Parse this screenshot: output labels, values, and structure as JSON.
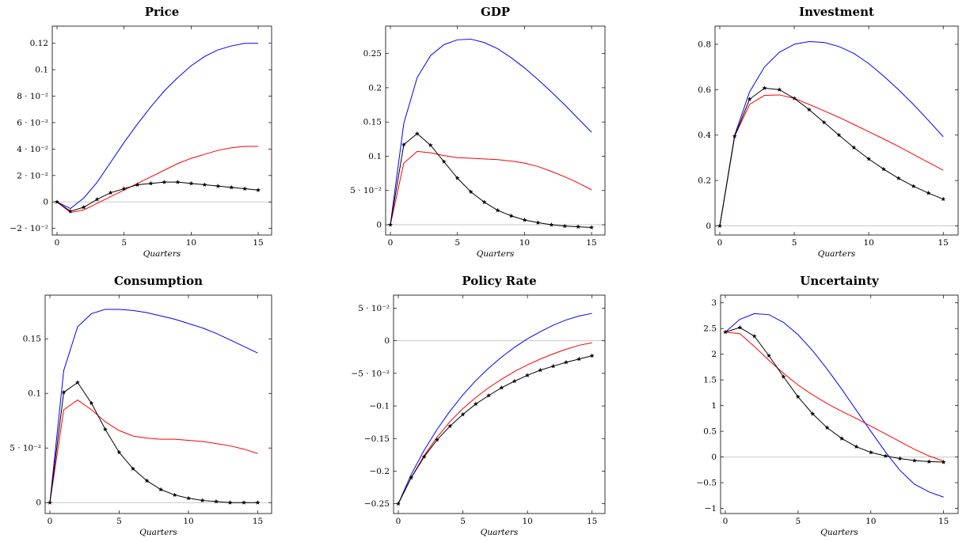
{
  "chart_data": [
    {
      "type": "line",
      "title": "Price",
      "xlabel": "Quarters",
      "ylabel": "",
      "xlim": [
        0,
        16
      ],
      "ylim": [
        -0.025,
        0.133
      ],
      "x_ticks": [
        0,
        5,
        10,
        15
      ],
      "y_ticks": [
        {
          "value": -0.02,
          "label": "−2 · 10⁻²"
        },
        {
          "value": 0,
          "label": "0"
        },
        {
          "value": 0.02,
          "label": "2 · 10⁻²"
        },
        {
          "value": 0.04,
          "label": "4 · 10⁻²"
        },
        {
          "value": 0.06,
          "label": "6 · 10⁻²"
        },
        {
          "value": 0.08,
          "label": "8 · 10⁻²"
        },
        {
          "value": 0.1,
          "label": "0.1"
        },
        {
          "value": 0.12,
          "label": "0.12"
        }
      ],
      "zero_line": true,
      "series": [
        {
          "color": "#0000ff",
          "marker": "none",
          "x": [
            0,
            1,
            2,
            3,
            4,
            5,
            6,
            7,
            8,
            9,
            10,
            11,
            12,
            13,
            14,
            15
          ],
          "y": [
            0,
            -0.005,
            0.003,
            0.015,
            0.03,
            0.045,
            0.059,
            0.072,
            0.084,
            0.094,
            0.103,
            0.11,
            0.115,
            0.118,
            0.12,
            0.12
          ]
        },
        {
          "color": "#ff0000",
          "marker": "none",
          "x": [
            0,
            1,
            2,
            3,
            4,
            5,
            6,
            7,
            8,
            9,
            10,
            11,
            12,
            13,
            14,
            15
          ],
          "y": [
            0,
            -0.008,
            -0.006,
            -0.001,
            0.004,
            0.009,
            0.014,
            0.019,
            0.024,
            0.029,
            0.033,
            0.036,
            0.039,
            0.041,
            0.042,
            0.042
          ]
        },
        {
          "color": "#000000",
          "marker": "star",
          "x": [
            0,
            1,
            2,
            3,
            4,
            5,
            6,
            7,
            8,
            9,
            10,
            11,
            12,
            13,
            14,
            15
          ],
          "y": [
            0,
            -0.007,
            -0.004,
            0.002,
            0.007,
            0.01,
            0.013,
            0.014,
            0.015,
            0.015,
            0.014,
            0.013,
            0.012,
            0.011,
            0.01,
            0.009
          ]
        }
      ]
    },
    {
      "type": "line",
      "title": "GDP",
      "xlabel": "Quarters",
      "ylabel": "",
      "xlim": [
        0,
        16
      ],
      "ylim": [
        -0.015,
        0.29
      ],
      "x_ticks": [
        0,
        5,
        10,
        15
      ],
      "y_ticks": [
        {
          "value": 0,
          "label": "0"
        },
        {
          "value": 0.05,
          "label": "5 · 10⁻²"
        },
        {
          "value": 0.1,
          "label": "0.1"
        },
        {
          "value": 0.15,
          "label": "0.15"
        },
        {
          "value": 0.2,
          "label": "0.2"
        },
        {
          "value": 0.25,
          "label": "0.25"
        }
      ],
      "zero_line": true,
      "series": [
        {
          "color": "#0000ff",
          "marker": "none",
          "x": [
            0,
            1,
            2,
            3,
            4,
            5,
            6,
            7,
            8,
            9,
            10,
            11,
            12,
            13,
            14,
            15
          ],
          "y": [
            0,
            0.148,
            0.215,
            0.247,
            0.263,
            0.27,
            0.271,
            0.266,
            0.257,
            0.244,
            0.229,
            0.212,
            0.194,
            0.175,
            0.155,
            0.135
          ]
        },
        {
          "color": "#ff0000",
          "marker": "none",
          "x": [
            0,
            1,
            2,
            3,
            4,
            5,
            6,
            7,
            8,
            9,
            10,
            11,
            12,
            13,
            14,
            15
          ],
          "y": [
            0,
            0.09,
            0.107,
            0.105,
            0.101,
            0.098,
            0.097,
            0.096,
            0.095,
            0.093,
            0.09,
            0.085,
            0.078,
            0.07,
            0.061,
            0.051
          ]
        },
        {
          "color": "#000000",
          "marker": "star",
          "x": [
            0,
            1,
            2,
            3,
            4,
            5,
            6,
            7,
            8,
            9,
            10,
            11,
            12,
            13,
            14,
            15
          ],
          "y": [
            0,
            0.117,
            0.133,
            0.116,
            0.092,
            0.068,
            0.048,
            0.033,
            0.021,
            0.013,
            0.007,
            0.003,
            0.0,
            -0.002,
            -0.003,
            -0.004
          ]
        }
      ]
    },
    {
      "type": "line",
      "title": "Investment",
      "xlabel": "Quarters",
      "ylabel": "",
      "xlim": [
        0,
        16
      ],
      "ylim": [
        -0.04,
        0.88
      ],
      "x_ticks": [
        0,
        5,
        10,
        15
      ],
      "y_ticks": [
        {
          "value": 0,
          "label": "0"
        },
        {
          "value": 0.2,
          "label": "0.2"
        },
        {
          "value": 0.4,
          "label": "0.4"
        },
        {
          "value": 0.6,
          "label": "0.6"
        },
        {
          "value": 0.8,
          "label": "0.8"
        }
      ],
      "zero_line": true,
      "series": [
        {
          "color": "#0000ff",
          "marker": "none",
          "x": [
            0,
            1,
            2,
            3,
            4,
            5,
            6,
            7,
            8,
            9,
            10,
            11,
            12,
            13,
            14,
            15
          ],
          "y": [
            0,
            0.4,
            0.59,
            0.7,
            0.765,
            0.8,
            0.812,
            0.808,
            0.79,
            0.76,
            0.715,
            0.66,
            0.6,
            0.535,
            0.465,
            0.393
          ]
        },
        {
          "color": "#ff0000",
          "marker": "none",
          "x": [
            0,
            1,
            2,
            3,
            4,
            5,
            6,
            7,
            8,
            9,
            10,
            11,
            12,
            13,
            14,
            15
          ],
          "y": [
            0,
            0.395,
            0.535,
            0.575,
            0.577,
            0.562,
            0.535,
            0.507,
            0.478,
            0.447,
            0.415,
            0.383,
            0.35,
            0.315,
            0.28,
            0.245
          ]
        },
        {
          "color": "#000000",
          "marker": "star",
          "x": [
            0,
            1,
            2,
            3,
            4,
            5,
            6,
            7,
            8,
            9,
            10,
            11,
            12,
            13,
            14,
            15
          ],
          "y": [
            0,
            0.395,
            0.558,
            0.607,
            0.6,
            0.562,
            0.512,
            0.456,
            0.4,
            0.345,
            0.295,
            0.25,
            0.21,
            0.175,
            0.145,
            0.118
          ]
        }
      ]
    },
    {
      "type": "line",
      "title": "Consumption",
      "xlabel": "Quarters",
      "ylabel": "",
      "xlim": [
        0,
        16
      ],
      "ylim": [
        -0.01,
        0.19
      ],
      "x_ticks": [
        0,
        5,
        10,
        15
      ],
      "y_ticks": [
        {
          "value": 0,
          "label": "0"
        },
        {
          "value": 0.05,
          "label": "5 · 10⁻²"
        },
        {
          "value": 0.1,
          "label": "0.1"
        },
        {
          "value": 0.15,
          "label": "0.15"
        }
      ],
      "zero_line": true,
      "series": [
        {
          "color": "#0000ff",
          "marker": "none",
          "x": [
            0,
            1,
            2,
            3,
            4,
            5,
            6,
            7,
            8,
            9,
            10,
            11,
            12,
            13,
            14,
            15
          ],
          "y": [
            0,
            0.121,
            0.161,
            0.173,
            0.177,
            0.177,
            0.176,
            0.174,
            0.171,
            0.168,
            0.164,
            0.16,
            0.155,
            0.149,
            0.143,
            0.137
          ]
        },
        {
          "color": "#ff0000",
          "marker": "none",
          "x": [
            0,
            1,
            2,
            3,
            4,
            5,
            6,
            7,
            8,
            9,
            10,
            11,
            12,
            13,
            14,
            15
          ],
          "y": [
            0,
            0.085,
            0.094,
            0.085,
            0.074,
            0.066,
            0.061,
            0.059,
            0.058,
            0.058,
            0.057,
            0.056,
            0.054,
            0.052,
            0.049,
            0.045
          ]
        },
        {
          "color": "#000000",
          "marker": "star",
          "x": [
            0,
            1,
            2,
            3,
            4,
            5,
            6,
            7,
            8,
            9,
            10,
            11,
            12,
            13,
            14,
            15
          ],
          "y": [
            0,
            0.101,
            0.11,
            0.091,
            0.067,
            0.046,
            0.031,
            0.02,
            0.012,
            0.007,
            0.004,
            0.002,
            0.001,
            0.0,
            0.0,
            0.0
          ]
        }
      ]
    },
    {
      "type": "line",
      "title": "Policy Rate",
      "xlabel": "Quarters",
      "ylabel": "",
      "xlim": [
        0,
        16
      ],
      "ylim": [
        -0.265,
        0.07
      ],
      "x_ticks": [
        0,
        5,
        10,
        15
      ],
      "y_ticks": [
        {
          "value": -0.25,
          "label": "−0.25"
        },
        {
          "value": -0.2,
          "label": "−0.2"
        },
        {
          "value": -0.15,
          "label": "−0.15"
        },
        {
          "value": -0.1,
          "label": "−0.1"
        },
        {
          "value": -0.05,
          "label": "−5 · 10⁻²"
        },
        {
          "value": 0,
          "label": "0"
        },
        {
          "value": 0.05,
          "label": "5 · 10⁻²"
        }
      ],
      "zero_line": true,
      "series": [
        {
          "color": "#0000ff",
          "marker": "none",
          "x": [
            0,
            1,
            2,
            3,
            4,
            5,
            6,
            7,
            8,
            9,
            10,
            11,
            12,
            13,
            14,
            15
          ],
          "y": [
            -0.25,
            -0.205,
            -0.168,
            -0.136,
            -0.108,
            -0.083,
            -0.061,
            -0.042,
            -0.025,
            -0.01,
            0.003,
            0.014,
            0.024,
            0.032,
            0.038,
            0.042
          ]
        },
        {
          "color": "#ff0000",
          "marker": "none",
          "x": [
            0,
            1,
            2,
            3,
            4,
            5,
            6,
            7,
            8,
            9,
            10,
            11,
            12,
            13,
            14,
            15
          ],
          "y": [
            -0.25,
            -0.21,
            -0.176,
            -0.148,
            -0.124,
            -0.104,
            -0.087,
            -0.072,
            -0.059,
            -0.047,
            -0.037,
            -0.028,
            -0.02,
            -0.013,
            -0.007,
            -0.003
          ]
        },
        {
          "color": "#000000",
          "marker": "star",
          "x": [
            0,
            1,
            2,
            3,
            4,
            5,
            6,
            7,
            8,
            9,
            10,
            11,
            12,
            13,
            14,
            15
          ],
          "y": [
            -0.25,
            -0.21,
            -0.178,
            -0.152,
            -0.131,
            -0.113,
            -0.097,
            -0.084,
            -0.072,
            -0.062,
            -0.053,
            -0.045,
            -0.039,
            -0.033,
            -0.028,
            -0.023
          ]
        }
      ]
    },
    {
      "type": "line",
      "title": "Uncertainty",
      "xlabel": "Quarters",
      "ylabel": "",
      "xlim": [
        0,
        16
      ],
      "ylim": [
        -1.1,
        3.15
      ],
      "x_ticks": [
        0,
        5,
        10,
        15
      ],
      "y_ticks": [
        {
          "value": -1,
          "label": "−1"
        },
        {
          "value": -0.5,
          "label": "−0.5"
        },
        {
          "value": 0,
          "label": "0"
        },
        {
          "value": 0.5,
          "label": "0.5"
        },
        {
          "value": 1,
          "label": "1"
        },
        {
          "value": 1.5,
          "label": "1.5"
        },
        {
          "value": 2,
          "label": "2"
        },
        {
          "value": 2.5,
          "label": "2.5"
        },
        {
          "value": 3,
          "label": "3"
        }
      ],
      "zero_line": true,
      "series": [
        {
          "color": "#0000ff",
          "marker": "none",
          "x": [
            0,
            1,
            2,
            3,
            4,
            5,
            6,
            7,
            8,
            9,
            10,
            11,
            12,
            13,
            14,
            15
          ],
          "y": [
            2.43,
            2.68,
            2.79,
            2.77,
            2.62,
            2.38,
            2.07,
            1.71,
            1.32,
            0.91,
            0.5,
            0.1,
            -0.26,
            -0.53,
            -0.68,
            -0.78
          ]
        },
        {
          "color": "#ff0000",
          "marker": "none",
          "x": [
            0,
            1,
            2,
            3,
            4,
            5,
            6,
            7,
            8,
            9,
            10,
            11,
            12,
            13,
            14,
            15
          ],
          "y": [
            2.43,
            2.4,
            2.15,
            1.88,
            1.63,
            1.4,
            1.21,
            1.04,
            0.89,
            0.75,
            0.6,
            0.45,
            0.3,
            0.15,
            0.02,
            -0.08
          ]
        },
        {
          "color": "#000000",
          "marker": "star",
          "x": [
            0,
            1,
            2,
            3,
            4,
            5,
            6,
            7,
            8,
            9,
            10,
            11,
            12,
            13,
            14,
            15
          ],
          "y": [
            2.43,
            2.52,
            2.35,
            1.97,
            1.56,
            1.17,
            0.84,
            0.57,
            0.36,
            0.2,
            0.09,
            0.02,
            -0.03,
            -0.07,
            -0.09,
            -0.1
          ]
        }
      ]
    }
  ]
}
